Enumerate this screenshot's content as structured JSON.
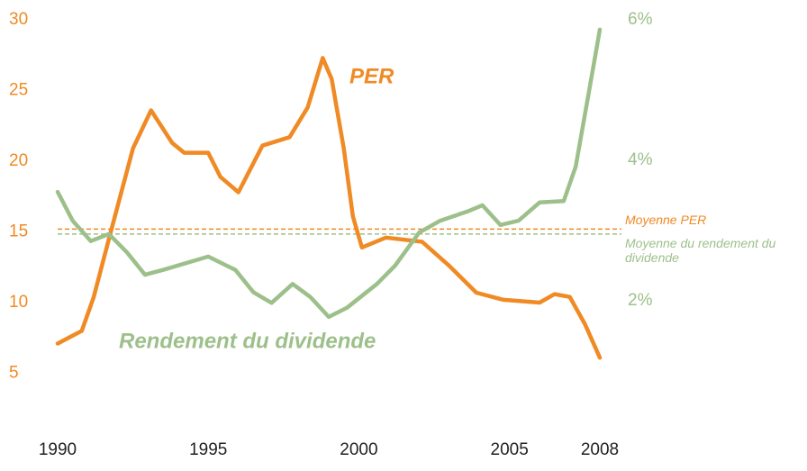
{
  "chart_data": {
    "type": "line",
    "series": [
      {
        "name": "PER",
        "color": "#f08a24",
        "axis": "y",
        "x": [
          1990,
          1990.8,
          1991.2,
          1991.7,
          1992.5,
          1993.1,
          1993.8,
          1994.2,
          1995.0,
          1995.4,
          1996.0,
          1996.8,
          1997.7,
          1998.3,
          1998.8,
          1999.1,
          1999.5,
          1999.8,
          2000.1,
          2000.9,
          2002.1,
          2003.0,
          2003.9,
          2004.8,
          2006.0,
          2006.5,
          2007.0,
          2007.5,
          2008.0
        ],
        "values": [
          7.1,
          8.0,
          10.4,
          14.5,
          20.9,
          23.6,
          21.3,
          20.6,
          20.6,
          18.9,
          17.8,
          21.1,
          21.7,
          23.8,
          27.3,
          25.8,
          20.9,
          16.1,
          13.9,
          14.6,
          14.3,
          12.6,
          10.7,
          10.2,
          10.0,
          10.6,
          10.4,
          8.5,
          6.1
        ]
      },
      {
        "name": "Rendement du dividende",
        "color": "#9dc08b",
        "axis": "y2",
        "x": [
          1990,
          1990.5,
          1991.1,
          1991.7,
          1992.3,
          1992.9,
          1993.5,
          1995.0,
          1995.9,
          1996.5,
          1997.1,
          1997.8,
          1998.4,
          1999.0,
          1999.6,
          2000.6,
          2001.2,
          2002.0,
          2002.7,
          2003.6,
          2004.1,
          2004.7,
          2005.3,
          2006.0,
          2006.8,
          2007.2,
          2007.7,
          2008.0
        ],
        "values": [
          3.55,
          3.14,
          2.85,
          2.95,
          2.69,
          2.37,
          2.44,
          2.63,
          2.44,
          2.12,
          1.97,
          2.24,
          2.05,
          1.77,
          1.9,
          2.24,
          2.5,
          2.97,
          3.14,
          3.27,
          3.36,
          3.08,
          3.14,
          3.4,
          3.42,
          3.91,
          5.13,
          5.86
        ]
      }
    ],
    "reference_lines": [
      {
        "name": "Moyenne PER",
        "value": 15.2,
        "axis": "y",
        "color": "#f08a24"
      },
      {
        "name": "Moyenne du rendement du dividende",
        "value": 2.95,
        "axis": "y2",
        "color": "#9dc08b"
      }
    ],
    "xlim": [
      1990,
      2008
    ],
    "xticks": [
      1990,
      1995,
      2000,
      2005,
      2008
    ],
    "ylim": [
      0,
      30
    ],
    "yticks": [
      5,
      10,
      15,
      20,
      25,
      30
    ],
    "y2lim": [
      0,
      6
    ],
    "y2ticks": [
      {
        "value": 2,
        "label": "2%"
      },
      {
        "value": 4,
        "label": "4%"
      },
      {
        "value": 6,
        "label": "6%"
      }
    ],
    "grid": false
  }
}
